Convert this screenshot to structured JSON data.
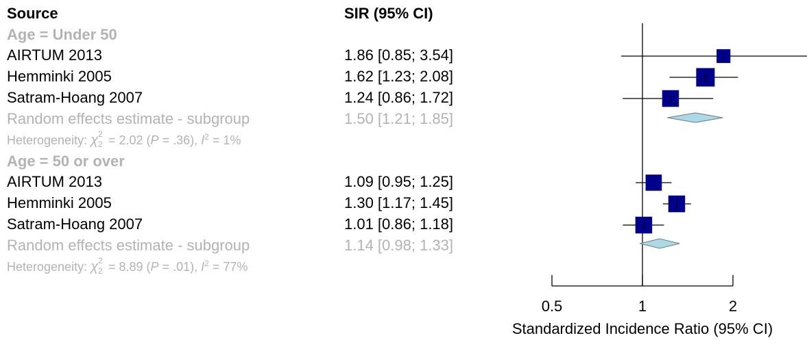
{
  "header": {
    "source": "Source",
    "sir": "SIR (95% CI)"
  },
  "groups": [
    {
      "label": "Age = Under 50",
      "studies": [
        {
          "name": "AIRTUM 2013",
          "ci_text": "1.86 [0.85; 3.54]"
        },
        {
          "name": "Hemminki 2005",
          "ci_text": "1.62 [1.23; 2.08]"
        },
        {
          "name": "Satram-Hoang 2007",
          "ci_text": "1.24 [0.86; 1.72]"
        }
      ],
      "pooled_label": "Random effects estimate - subgroup",
      "pooled_text": "1.50 [1.21; 1.85]",
      "het_prefix": "Heterogeneity: ",
      "het_chi": "χ",
      "het_sup": "2",
      "het_sub": "2",
      "het_mid": " = 2.02 (",
      "het_p": "P",
      "het_pval": " = .36), ",
      "het_i": "I",
      "het_i_sup": "2",
      "het_i_val": " = 1%"
    },
    {
      "label": "Age = 50 or over",
      "studies": [
        {
          "name": "AIRTUM 2013",
          "ci_text": "1.09 [0.95; 1.25]"
        },
        {
          "name": "Hemminki 2005",
          "ci_text": "1.30 [1.17; 1.45]"
        },
        {
          "name": "Satram-Hoang 2007",
          "ci_text": "1.01 [0.86; 1.18]"
        }
      ],
      "pooled_label": "Random effects estimate - subgroup",
      "pooled_text": "1.14 [0.98; 1.33]",
      "het_prefix": "Heterogeneity: ",
      "het_chi": "χ",
      "het_sup": "2",
      "het_sub": "2",
      "het_mid": " = 8.89 (",
      "het_p": "P",
      "het_pval": " = .01), ",
      "het_i": "I",
      "het_i_sup": "2",
      "het_i_val": " = 77%"
    }
  ],
  "chart_data": {
    "type": "forest",
    "scale": "log",
    "xlabel": "Standardized Incidence Ratio (95% CI)",
    "xlim": [
      0.5,
      2
    ],
    "ticks": [
      0.5,
      1,
      2
    ],
    "tick_labels": [
      "0.5",
      "1",
      "2"
    ],
    "reference_line": 1,
    "studies": [
      {
        "group": "Age = Under 50",
        "name": "AIRTUM 2013",
        "est": 1.86,
        "lo": 0.85,
        "hi": 3.54,
        "weight": 0.6
      },
      {
        "group": "Age = Under 50",
        "name": "Hemminki 2005",
        "est": 1.62,
        "lo": 1.23,
        "hi": 2.08,
        "weight": 1.0
      },
      {
        "group": "Age = Under 50",
        "name": "Satram-Hoang 2007",
        "est": 1.24,
        "lo": 0.86,
        "hi": 1.72,
        "weight": 0.85
      },
      {
        "group": "Age = 50 or over",
        "name": "AIRTUM 2013",
        "est": 1.09,
        "lo": 0.95,
        "hi": 1.25,
        "weight": 0.8
      },
      {
        "group": "Age = 50 or over",
        "name": "Hemminki 2005",
        "est": 1.3,
        "lo": 1.17,
        "hi": 1.45,
        "weight": 0.85
      },
      {
        "group": "Age = 50 or over",
        "name": "Satram-Hoang 2007",
        "est": 1.01,
        "lo": 0.86,
        "hi": 1.18,
        "weight": 0.85
      }
    ],
    "pooled": [
      {
        "group": "Age = Under 50",
        "est": 1.5,
        "lo": 1.21,
        "hi": 1.85
      },
      {
        "group": "Age = 50 or over",
        "est": 1.14,
        "lo": 0.98,
        "hi": 1.33
      }
    ],
    "colors": {
      "square": "#00008b",
      "diamond": "#add8e6",
      "diamond_stroke": "#6b7b86",
      "line": "#000000",
      "grey": "#b3b3b3"
    }
  }
}
